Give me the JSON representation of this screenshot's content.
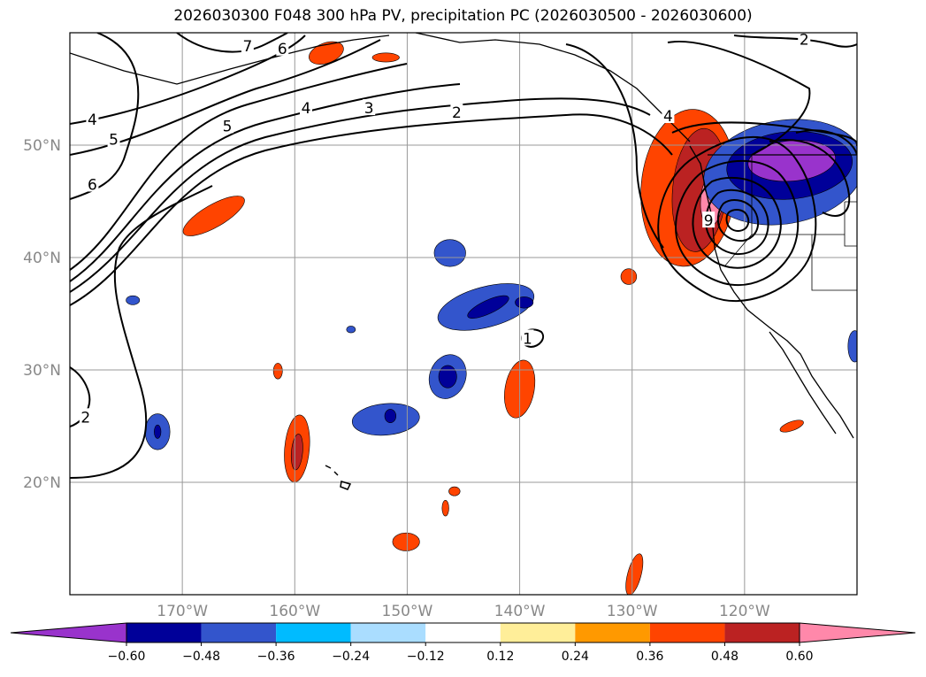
{
  "chart_data": {
    "type": "contour-map",
    "title": "2026030300 F048 300 hPa PV, precipitation PC (2026030500 - 2026030600)",
    "extent": {
      "lon": [
        -180,
        -110
      ],
      "lat": [
        10,
        60
      ]
    },
    "lat_ticks": [
      {
        "value": 20,
        "label": "20°N"
      },
      {
        "value": 30,
        "label": "30°N"
      },
      {
        "value": 40,
        "label": "40°N"
      },
      {
        "value": 50,
        "label": "50°N"
      }
    ],
    "lon_ticks": [
      {
        "value": -170,
        "label": "170°W"
      },
      {
        "value": -160,
        "label": "160°W"
      },
      {
        "value": -150,
        "label": "150°W"
      },
      {
        "value": -140,
        "label": "140°W"
      },
      {
        "value": -130,
        "label": "130°W"
      },
      {
        "value": -120,
        "label": "120°W"
      }
    ],
    "pv_contour_labels": [
      {
        "text": "7",
        "lon": -164.2,
        "lat": 58.8
      },
      {
        "text": "6",
        "lon": -161.1,
        "lat": 58.6
      },
      {
        "text": "4",
        "lon": -178,
        "lat": 52.3
      },
      {
        "text": "5",
        "lon": -176.1,
        "lat": 50.5
      },
      {
        "text": "5",
        "lon": -166,
        "lat": 51.7
      },
      {
        "text": "4",
        "lon": -159,
        "lat": 53.3
      },
      {
        "text": "3",
        "lon": -153.4,
        "lat": 53.3
      },
      {
        "text": "2",
        "lon": -145.6,
        "lat": 52.9
      },
      {
        "text": "6",
        "lon": -178,
        "lat": 46.5
      },
      {
        "text": "4",
        "lon": -126.8,
        "lat": 52.6
      },
      {
        "text": "2",
        "lon": -114.7,
        "lat": 59.4
      },
      {
        "text": "1",
        "lon": -139.3,
        "lat": 32.8
      },
      {
        "text": "2",
        "lon": -178.6,
        "lat": 25.8
      },
      {
        "text": "9",
        "lon": -123.2,
        "lat": 43.3
      }
    ],
    "colorbar": {
      "levels": [
        -0.6,
        -0.48,
        -0.36,
        -0.24,
        -0.12,
        0.12,
        0.24,
        0.36,
        0.48,
        0.6
      ],
      "tick_labels": [
        "−0.60",
        "−0.48",
        "−0.36",
        "−0.24",
        "−0.12",
        "0.12",
        "0.24",
        "0.36",
        "0.48",
        "0.60"
      ],
      "colors": [
        "#9933cc",
        "#000099",
        "#3355cc",
        "#00bbff",
        "#aaddff",
        "#ffffff",
        "#ffee99",
        "#ff9900",
        "#ff4400",
        "#bb2222",
        "#ff88aa"
      ],
      "extend": "both"
    },
    "precip_pc_blobs": [
      {
        "color": "#ff4400",
        "lon": -167.2,
        "lat": 43.7,
        "rx": 3.1,
        "ry": 1.0,
        "rot": -30
      },
      {
        "color": "#ff4400",
        "lon": -157.2,
        "lat": 58.2,
        "rx": 1.6,
        "ry": 0.9,
        "rot": -20
      },
      {
        "color": "#ff4400",
        "lon": -151.9,
        "lat": 57.8,
        "rx": 1.2,
        "ry": 0.4,
        "rot": 0
      },
      {
        "color": "#3355cc",
        "lon": -172.2,
        "lat": 24.5,
        "rx": 1.1,
        "ry": 1.6,
        "rot": 0
      },
      {
        "color": "#000099",
        "lon": -172.2,
        "lat": 24.5,
        "rx": 0.3,
        "ry": 0.6,
        "rot": 0
      },
      {
        "color": "#ff4400",
        "lon": -159.8,
        "lat": 23.0,
        "rx": 1.1,
        "ry": 3.0,
        "rot": 5
      },
      {
        "color": "#bb2222",
        "lon": -159.8,
        "lat": 22.7,
        "rx": 0.5,
        "ry": 1.6,
        "rot": 5
      },
      {
        "color": "#3355cc",
        "lon": -151.9,
        "lat": 25.6,
        "rx": 3.0,
        "ry": 1.4,
        "rot": -5
      },
      {
        "color": "#000099",
        "lon": -151.5,
        "lat": 25.9,
        "rx": 0.5,
        "ry": 0.6,
        "rot": 0
      },
      {
        "color": "#3355cc",
        "lon": -146.4,
        "lat": 29.4,
        "rx": 1.6,
        "ry": 2.0,
        "rot": 20
      },
      {
        "color": "#000099",
        "lon": -146.4,
        "lat": 29.4,
        "rx": 0.8,
        "ry": 1.0,
        "rot": 0
      },
      {
        "color": "#3355cc",
        "lon": -143.0,
        "lat": 35.6,
        "rx": 4.4,
        "ry": 1.8,
        "rot": -15
      },
      {
        "color": "#000099",
        "lon": -142.8,
        "lat": 35.6,
        "rx": 2.0,
        "ry": 0.6,
        "rot": -25
      },
      {
        "color": "#000099",
        "lon": -139.6,
        "lat": 36.0,
        "rx": 0.8,
        "ry": 0.5,
        "rot": 0
      },
      {
        "color": "#3355cc",
        "lon": -146.2,
        "lat": 40.4,
        "rx": 1.4,
        "ry": 1.2,
        "rot": 0
      },
      {
        "color": "#ff4400",
        "lon": -140.0,
        "lat": 28.3,
        "rx": 1.3,
        "ry": 2.6,
        "rot": 10
      },
      {
        "color": "#ff4400",
        "lon": -150.1,
        "lat": 14.7,
        "rx": 1.2,
        "ry": 0.8,
        "rot": 0
      },
      {
        "color": "#ff4400",
        "lon": -145.8,
        "lat": 19.2,
        "rx": 0.5,
        "ry": 0.4,
        "rot": 0
      },
      {
        "color": "#ff4400",
        "lon": -146.6,
        "lat": 17.7,
        "rx": 0.3,
        "ry": 0.7,
        "rot": 0
      },
      {
        "color": "#ff4400",
        "lon": -129.8,
        "lat": 11.8,
        "rx": 0.6,
        "ry": 1.9,
        "rot": 15
      },
      {
        "color": "#ff4400",
        "lon": -130.3,
        "lat": 38.3,
        "rx": 0.7,
        "ry": 0.7,
        "rot": 0
      },
      {
        "color": "#ff4400",
        "lon": -161.5,
        "lat": 29.9,
        "rx": 0.4,
        "ry": 0.7,
        "rot": 0
      },
      {
        "color": "#ff4400",
        "lon": -115.8,
        "lat": 25.0,
        "rx": 1.1,
        "ry": 0.4,
        "rot": -20
      },
      {
        "color": "#3355cc",
        "lon": -174.4,
        "lat": 36.2,
        "rx": 0.6,
        "ry": 0.4,
        "rot": 0
      },
      {
        "color": "#3355cc",
        "lon": -155.0,
        "lat": 33.6,
        "rx": 0.4,
        "ry": 0.3,
        "rot": 0
      },
      {
        "color": "#ff4400",
        "lon": -125.0,
        "lat": 46.2,
        "rx": 4.2,
        "ry": 7.0,
        "rot": 5
      },
      {
        "color": "#bb2222",
        "lon": -124.0,
        "lat": 46.0,
        "rx": 2.4,
        "ry": 5.5,
        "rot": 5
      },
      {
        "color": "#ff88aa",
        "lon": -122.9,
        "lat": 45.2,
        "rx": 1.0,
        "ry": 2.4,
        "rot": 5
      },
      {
        "color": "#3355cc",
        "lon": -116.5,
        "lat": 47.6,
        "rx": 7.2,
        "ry": 4.6,
        "rot": -10
      },
      {
        "color": "#000099",
        "lon": -116.0,
        "lat": 48.2,
        "rx": 5.6,
        "ry": 3.0,
        "rot": -5
      },
      {
        "color": "#9933cc",
        "lon": -115.8,
        "lat": 48.6,
        "rx": 3.9,
        "ry": 1.8,
        "rot": -5
      },
      {
        "color": "#3355cc",
        "lon": -110.2,
        "lat": 32.1,
        "rx": 0.6,
        "ry": 1.4,
        "rot": 0
      }
    ]
  }
}
